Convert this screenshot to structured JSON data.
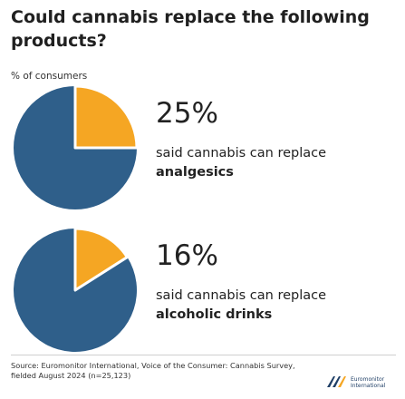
{
  "title": "Could cannabis replace the following products?",
  "subtitle": "% of consumers",
  "colors": {
    "filled": "#f5a623",
    "rest": "#2f5f8a",
    "outline": "#ffffff"
  },
  "chart_data": [
    {
      "type": "pie",
      "value_percent": 25,
      "value_label": "25%",
      "text": "said cannabis can replace",
      "category": "analgesics"
    },
    {
      "type": "pie",
      "value_percent": 16,
      "value_label": "16%",
      "text": "said cannabis can replace",
      "category": "alcoholic drinks"
    }
  ],
  "source": "Source: Euromonitor International, Voice of the Consumer: Cannabis Survey, fielded August 2024 (n=25,123)",
  "logo": {
    "line1": "Euromonitor",
    "line2": "International"
  }
}
